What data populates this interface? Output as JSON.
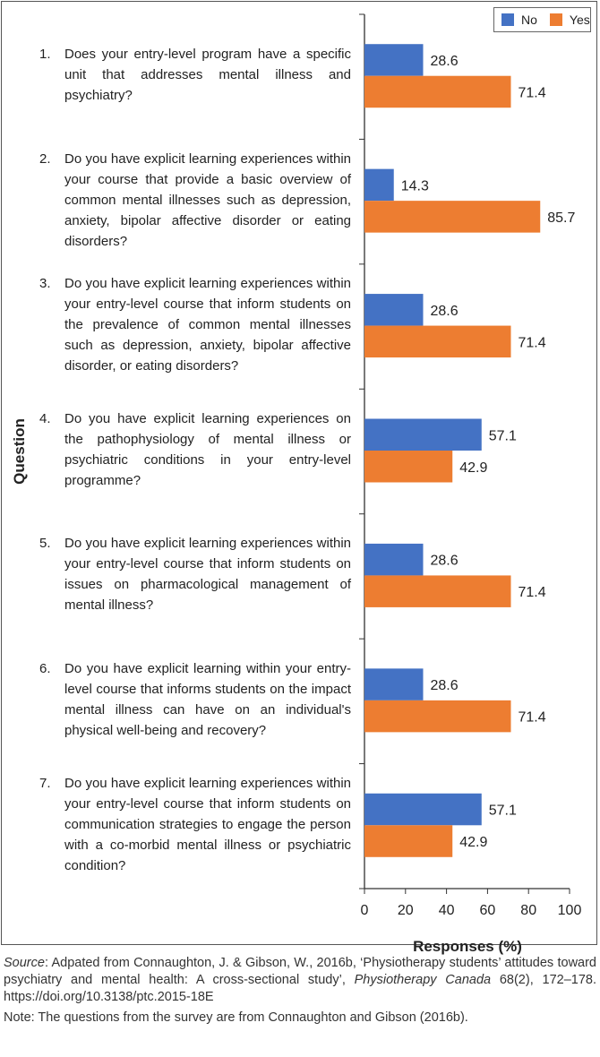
{
  "chart_data": {
    "type": "bar",
    "orientation": "horizontal",
    "categories": [
      "Does your entry-level program have a specific unit that addresses mental illness and psychiatry?",
      "Do you have explicit learning experiences within your course that provide a basic overview of common mental illnesses such as depression, anxiety, bipolar affective disorder or eating disorders?",
      "Do you have explicit learning experiences within your entry-level course that inform students on the prevalence of common mental illnesses such as depression, anxiety, bipolar affective disorder, or eating disorders?",
      "Do you have explicit learning experiences on the pathophysiology of mental illness or psychiatric conditions in your entry-level programme?",
      "Do you have explicit learning experiences within your entry-level course that inform students on issues on pharmacological management of mental illness?",
      "Do you have explicit learning within your entry-level course that informs students on the impact mental illness can have on an individual's physical well-being and recovery?",
      "Do you have explicit learning experiences within your entry-level course that inform students on communication strategies to engage the person with a co-morbid mental illness or psychiatric condition?"
    ],
    "numbers": [
      "1.",
      "2.",
      "3.",
      "4.",
      "5.",
      "6.",
      "7."
    ],
    "series": [
      {
        "name": "No",
        "color": "#4472c4",
        "values": [
          28.6,
          14.3,
          28.6,
          57.1,
          28.6,
          28.6,
          57.1
        ]
      },
      {
        "name": "Yes",
        "color": "#ed7d31",
        "values": [
          71.4,
          85.7,
          71.4,
          42.9,
          71.4,
          71.4,
          42.9
        ]
      }
    ],
    "xlabel": "Responses (%)",
    "ylabel": "Question",
    "xlim": [
      0,
      100
    ],
    "xticks": [
      "0",
      "20",
      "40",
      "60",
      "80",
      "100"
    ],
    "grid": false,
    "legend": "top-right"
  },
  "source": {
    "label": "Source",
    "text": ": Adpated from Connaughton, J. & Gibson, W., 2016b, ‘Physiotherapy students’ attitudes toward psychiatry and mental health: A cross-sectional study’, ",
    "journal": "Physiotherapy Canada",
    "rest": " 68(2), 172–178. https://doi.org/10.3138/ptc.2015-18E"
  },
  "note": "Note: The questions from the survey are from Connaughton and Gibson (2016b)."
}
